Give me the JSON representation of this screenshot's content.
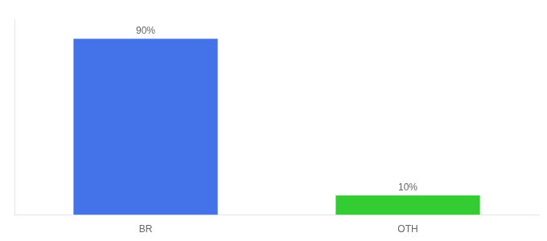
{
  "chart_data": {
    "type": "bar",
    "categories": [
      "BR",
      "OTH"
    ],
    "values": [
      90,
      10
    ],
    "colors": [
      "#4472e8",
      "#33cc33"
    ],
    "value_labels": [
      "90%",
      "10%"
    ],
    "data_labels": true,
    "ylim": [
      0,
      100
    ],
    "tick_labels": "x",
    "grid": false
  }
}
